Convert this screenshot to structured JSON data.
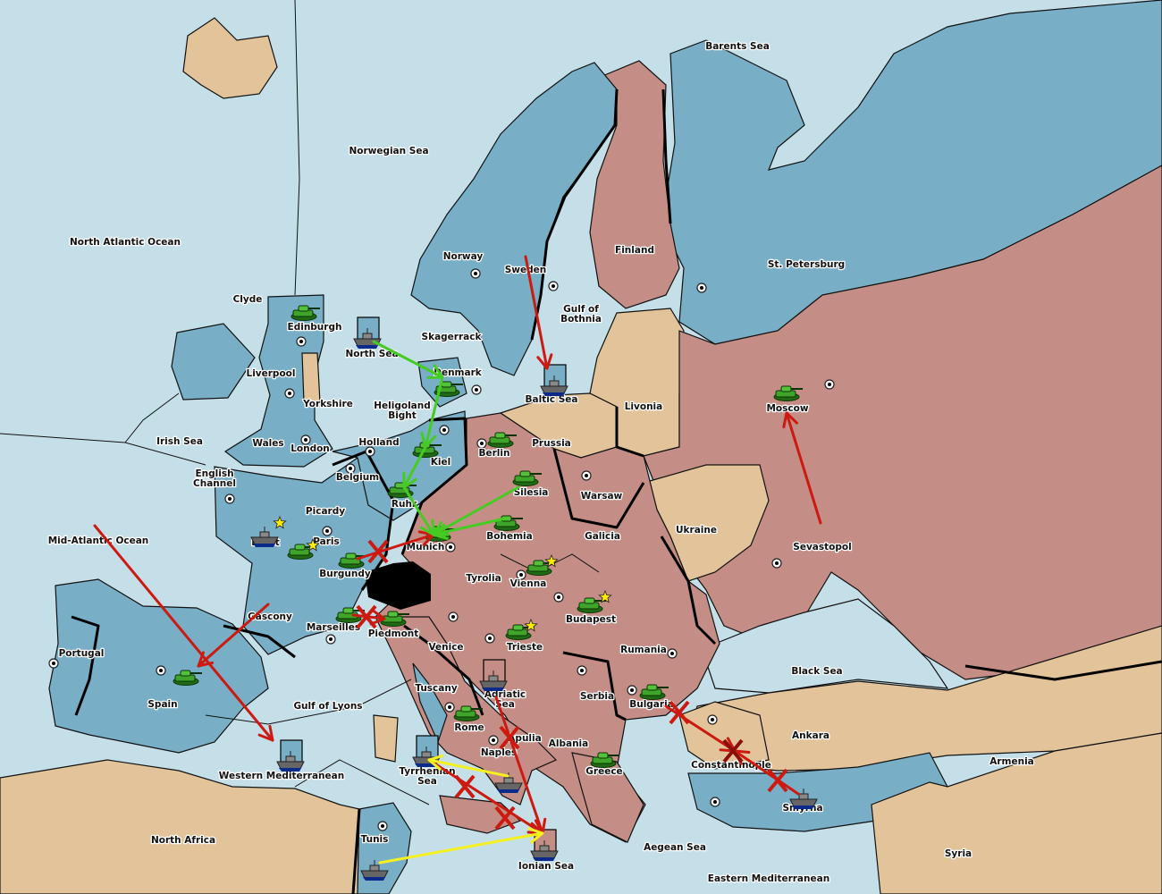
{
  "colors": {
    "sea": "#c5dfe9",
    "blue_power": "#78aec6",
    "pink_power": "#c48e86",
    "neutral": "#e3c49a",
    "impassable": "#000000",
    "order_failed": "#cc1a10",
    "order_move": "#44cc22",
    "order_support": "#f5f020",
    "supply_star": "#ffee00"
  },
  "map": {
    "territories": [
      "Barents Sea",
      "Norwegian Sea",
      "North Atlantic Ocean",
      "Clyde",
      "Edinburgh",
      "Norway",
      "Sweden",
      "Finland",
      "St. Petersburg",
      "Gulf of Bothnia",
      "Skagerrack",
      "North Sea",
      "Denmark",
      "Liverpool",
      "Yorkshire",
      "Baltic Sea",
      "Livonia",
      "Moscow",
      "Heligoland Bight",
      "Irish Sea",
      "Wales",
      "London",
      "Holland",
      "Prussia",
      "Berlin",
      "Kiel",
      "English Channel",
      "Belgium",
      "Warsaw",
      "Silesia",
      "Ruhr",
      "Picardy",
      "Ukraine",
      "Brest",
      "Paris",
      "Mid-Atlantic Ocean",
      "Munich",
      "Bohemia",
      "Galicia",
      "Sevastopol",
      "Burgundy",
      "Tyrolia",
      "Vienna",
      "Gascony",
      "Budapest",
      "Marseilles",
      "Piedmont",
      "Portugal",
      "Venice",
      "Trieste",
      "Rumania",
      "Black Sea",
      "Tuscany",
      "Adriatic Sea",
      "Serbia",
      "Bulgaria",
      "Gulf of Lyons",
      "Spain",
      "Rome",
      "Apulia",
      "Ankara",
      "Albania",
      "Naples",
      "Armenia",
      "Constantinople",
      "Greece",
      "Western Mediterranean",
      "Tyrrhenian Sea",
      "Smyrna",
      "North Africa",
      "Tunis",
      "Aegean Sea",
      "Syria",
      "Ionian Sea",
      "Eastern Mediterranean"
    ],
    "units": [
      {
        "type": "army",
        "location": "Edinburgh"
      },
      {
        "type": "army",
        "location": "Denmark"
      },
      {
        "type": "army",
        "location": "Berlin"
      },
      {
        "type": "army",
        "location": "Kiel"
      },
      {
        "type": "army",
        "location": "Silesia"
      },
      {
        "type": "army",
        "location": "Ruhr"
      },
      {
        "type": "army",
        "location": "Munich"
      },
      {
        "type": "army",
        "location": "Bohemia"
      },
      {
        "type": "army",
        "location": "Burgundy"
      },
      {
        "type": "army",
        "location": "Paris"
      },
      {
        "type": "army",
        "location": "Vienna"
      },
      {
        "type": "army",
        "location": "Budapest"
      },
      {
        "type": "army",
        "location": "Trieste"
      },
      {
        "type": "army",
        "location": "Marseilles"
      },
      {
        "type": "army",
        "location": "Piedmont"
      },
      {
        "type": "army",
        "location": "Spain"
      },
      {
        "type": "army",
        "location": "Rome"
      },
      {
        "type": "army",
        "location": "Bulgaria"
      },
      {
        "type": "army",
        "location": "Greece"
      },
      {
        "type": "army",
        "location": "Moscow"
      },
      {
        "type": "fleet",
        "location": "North Sea",
        "dislodged_box": "blue"
      },
      {
        "type": "fleet",
        "location": "Baltic Sea",
        "dislodged_box": "blue"
      },
      {
        "type": "fleet",
        "location": "Brest"
      },
      {
        "type": "fleet",
        "location": "Western Mediterranean",
        "dislodged_box": "blue"
      },
      {
        "type": "fleet",
        "location": "Adriatic Sea",
        "dislodged_box": "pink"
      },
      {
        "type": "fleet",
        "location": "Tyrrhenian Sea",
        "dislodged_box": "blue"
      },
      {
        "type": "fleet",
        "location": "Ionian Sea",
        "dislodged_box": "pink"
      },
      {
        "type": "fleet",
        "location": "Naples"
      },
      {
        "type": "fleet",
        "location": "Tunis"
      },
      {
        "type": "fleet",
        "location": "Smyrna"
      }
    ],
    "stars": [
      "Brest",
      "Paris",
      "Vienna",
      "Budapest",
      "Trieste"
    ],
    "orders": [
      {
        "kind": "move",
        "from": "Sweden",
        "to": "Baltic Sea",
        "result": "failed"
      },
      {
        "kind": "move",
        "from": "Sevastopol",
        "to": "Moscow",
        "result": "failed"
      },
      {
        "kind": "move",
        "from": "Mid-Atlantic Ocean",
        "to": "Western Mediterranean",
        "result": "failed"
      },
      {
        "kind": "move",
        "from": "Gascony",
        "to": "Spain",
        "result": "failed"
      },
      {
        "kind": "move",
        "from": "Burgundy",
        "to": "Munich",
        "result": "failed"
      },
      {
        "kind": "move",
        "from": "Marseilles",
        "to": "Piedmont",
        "result": "failed"
      },
      {
        "kind": "move",
        "from": "Adriatic Sea",
        "to": "Ionian Sea",
        "result": "failed"
      },
      {
        "kind": "move",
        "from": "Tyrrhenian Sea",
        "to": "Ionian Sea",
        "result": "failed"
      },
      {
        "kind": "move",
        "from": "Bulgaria",
        "to": "Constantinople",
        "result": "failed"
      },
      {
        "kind": "move",
        "from": "Smyrna",
        "to": "Constantinople",
        "result": "failed"
      },
      {
        "kind": "move",
        "from": "North Sea",
        "to": "Denmark",
        "result": "success"
      },
      {
        "kind": "move",
        "from": "Denmark",
        "to": "Kiel",
        "result": "success"
      },
      {
        "kind": "move",
        "from": "Kiel",
        "to": "Ruhr",
        "result": "success"
      },
      {
        "kind": "move",
        "from": "Ruhr",
        "to": "Munich",
        "result": "success"
      },
      {
        "kind": "support",
        "from": "Silesia",
        "to": "Munich",
        "result": "success"
      },
      {
        "kind": "support",
        "from": "Bohemia",
        "to": "Munich",
        "result": "success"
      },
      {
        "kind": "support",
        "from": "Tunis",
        "to": "Ionian Sea",
        "result": "support"
      },
      {
        "kind": "support",
        "from": "Naples",
        "to": "Tyrrhenian Sea",
        "result": "support"
      }
    ]
  }
}
